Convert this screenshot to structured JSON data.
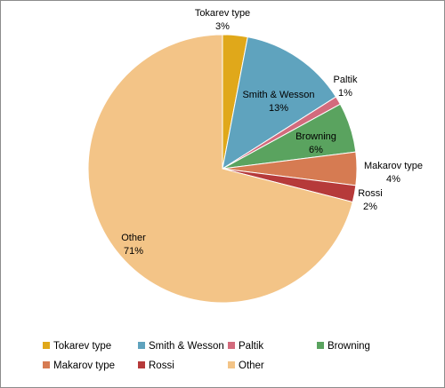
{
  "chart_data": {
    "type": "pie",
    "title": "",
    "slices": [
      {
        "label": "Tokarev type",
        "value": 3,
        "display": "3%",
        "color": "#e0a81a"
      },
      {
        "label": "Smith & Wesson",
        "value": 13,
        "display": "13%",
        "color": "#5fa3be"
      },
      {
        "label": "Paltik",
        "value": 1,
        "display": "1%",
        "color": "#d36b7d"
      },
      {
        "label": "Browning",
        "value": 6,
        "display": "6%",
        "color": "#5aa35f"
      },
      {
        "label": "Makarov type",
        "value": 4,
        "display": "4%",
        "color": "#d67b52"
      },
      {
        "label": "Rossi",
        "value": 2,
        "display": "2%",
        "color": "#b63a3a"
      },
      {
        "label": "Other",
        "value": 71,
        "display": "71%",
        "color": "#f3c487"
      }
    ],
    "legend_position": "bottom"
  }
}
